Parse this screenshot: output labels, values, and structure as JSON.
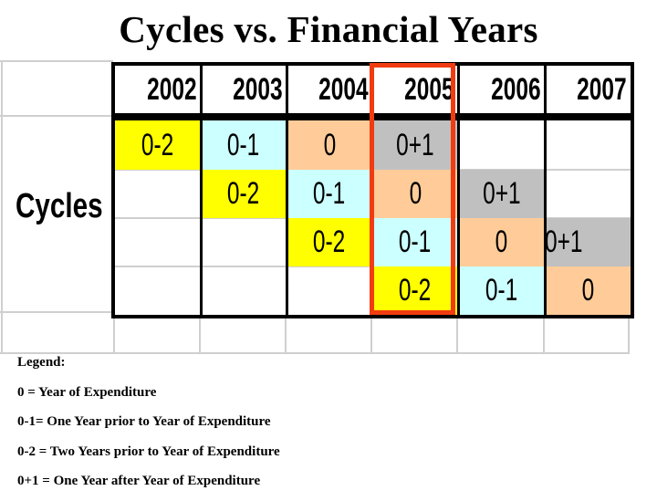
{
  "title": "Cycles vs. Financial Years",
  "row_label": "Cycles",
  "columns": [
    "2002",
    "2003",
    "2004",
    "2005",
    "2006",
    "2007"
  ],
  "highlighted_column": "2005",
  "colors": {
    "0-2": "#ffff00",
    "0-1": "#ccffff",
    "0": "#ffcc99",
    "0+1": "#c0c0c0",
    "highlight_border": "#f03c10"
  },
  "rows": [
    [
      "0-2",
      "0-1",
      "0",
      "0+1",
      "",
      ""
    ],
    [
      "",
      "0-2",
      "0-1",
      "0",
      "0+1",
      ""
    ],
    [
      "",
      "",
      "0-2",
      "0-1",
      "0",
      "0+1"
    ],
    [
      "",
      "",
      "",
      "0-2",
      "0-1",
      "0"
    ]
  ],
  "legend": {
    "heading": "Legend:",
    "items": [
      "0 = Year of Expenditure",
      "0-1= One Year prior to Year of Expenditure",
      "0-2 = Two Years prior to Year of Expenditure",
      "0+1 = One Year after Year of Expenditure"
    ]
  }
}
